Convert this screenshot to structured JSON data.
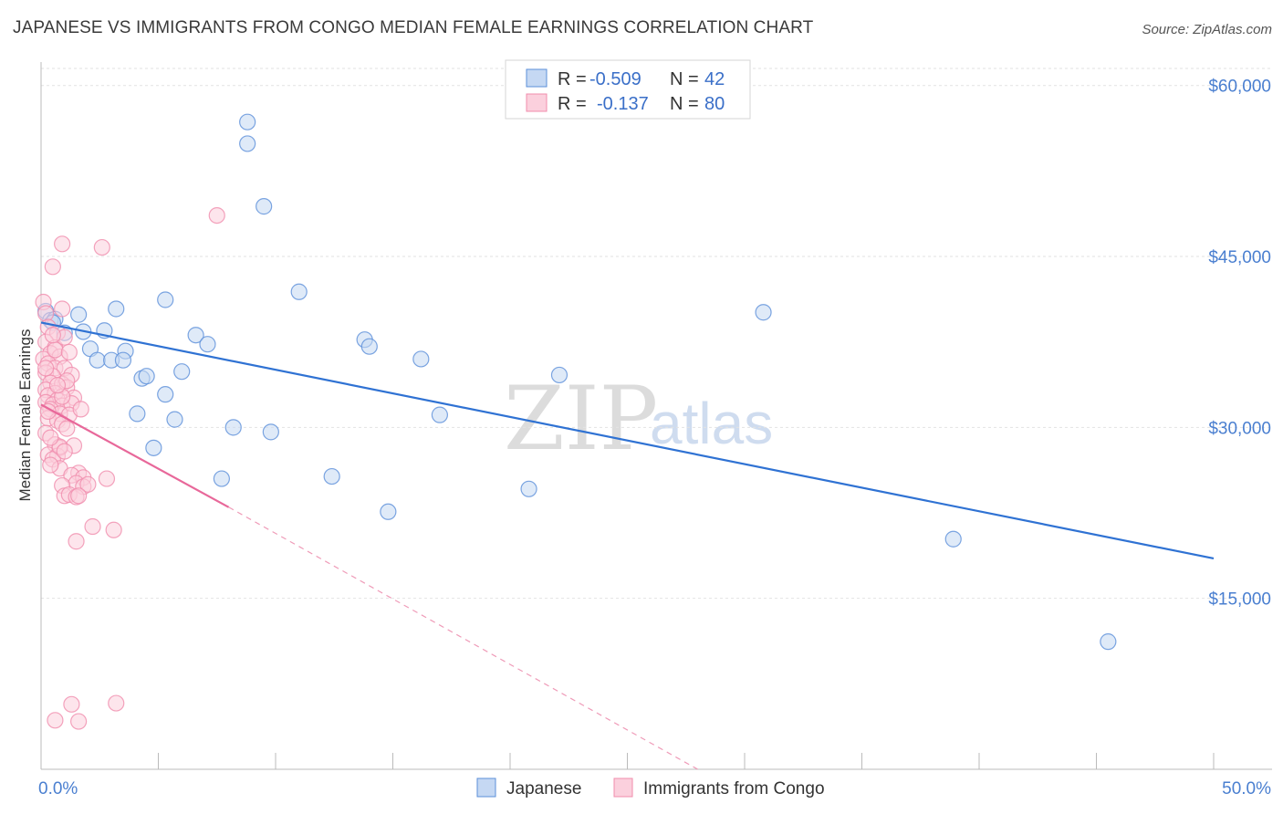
{
  "title": "JAPANESE VS IMMIGRANTS FROM CONGO MEDIAN FEMALE EARNINGS CORRELATION CHART",
  "source": "Source: ZipAtlas.com",
  "watermark": {
    "part1": "ZIP",
    "part2": "atlas"
  },
  "legend": {
    "r_label": "R =",
    "n_label": "N =",
    "rows": [
      {
        "r": "-0.509",
        "n": "42"
      },
      {
        "r": "-0.137",
        "n": "80"
      }
    ]
  },
  "chart_data": {
    "type": "scatter",
    "title": "JAPANESE VS IMMIGRANTS FROM CONGO MEDIAN FEMALE EARNINGS CORRELATION CHART",
    "xlabel": "",
    "ylabel": "Median Female Earnings",
    "xlim": [
      0,
      50
    ],
    "ylim": [
      0,
      61500
    ],
    "x_tick_labels": [
      "0.0%",
      "50.0%"
    ],
    "y_ticks": [
      15000,
      30000,
      45000,
      60000
    ],
    "y_tick_labels": [
      "$15,000",
      "$30,000",
      "$45,000",
      "$60,000"
    ],
    "grid": true,
    "legend_position": "top-center",
    "series": [
      {
        "name": "Japanese",
        "color": "#5b8fd9",
        "fill": "#c5d8f3",
        "trend": {
          "x0": 0,
          "y0": 39200,
          "x1": 50,
          "y1": 18500,
          "dashed_from": null
        },
        "points": [
          [
            0.2,
            40200
          ],
          [
            0.4,
            39400
          ],
          [
            0.6,
            39500
          ],
          [
            1.6,
            39900
          ],
          [
            1.0,
            38300
          ],
          [
            1.8,
            38400
          ],
          [
            2.7,
            38500
          ],
          [
            2.1,
            36900
          ],
          [
            3.6,
            36700
          ],
          [
            2.4,
            35900
          ],
          [
            3.0,
            35900
          ],
          [
            3.5,
            35900
          ],
          [
            4.3,
            34300
          ],
          [
            4.5,
            34500
          ],
          [
            3.2,
            40400
          ],
          [
            5.3,
            41200
          ],
          [
            6.6,
            38100
          ],
          [
            7.1,
            37300
          ],
          [
            6.0,
            34900
          ],
          [
            5.3,
            32900
          ],
          [
            4.1,
            31200
          ],
          [
            5.7,
            30700
          ],
          [
            4.8,
            28200
          ],
          [
            8.2,
            30000
          ],
          [
            9.8,
            29600
          ],
          [
            7.7,
            25500
          ],
          [
            8.8,
            56800
          ],
          [
            8.8,
            54900
          ],
          [
            9.5,
            49400
          ],
          [
            11.0,
            41900
          ],
          [
            13.8,
            37700
          ],
          [
            14.0,
            37100
          ],
          [
            16.2,
            36000
          ],
          [
            17.0,
            31100
          ],
          [
            12.4,
            25700
          ],
          [
            14.8,
            22600
          ],
          [
            20.8,
            24600
          ],
          [
            22.1,
            34600
          ],
          [
            30.8,
            40100
          ],
          [
            38.9,
            20200
          ],
          [
            45.5,
            11200
          ],
          [
            0.5,
            39200
          ]
        ]
      },
      {
        "name": "Immigrants from Congo",
        "color": "#f08cac",
        "fill": "#fbd0dd",
        "trend": {
          "x0": 0,
          "y0": 32000,
          "x1": 8,
          "y1": 23000,
          "dashed_to_x": 28,
          "dashed_to_y": 0
        },
        "points": [
          [
            0.1,
            41000
          ],
          [
            0.5,
            44100
          ],
          [
            0.2,
            40000
          ],
          [
            0.9,
            40400
          ],
          [
            0.3,
            38800
          ],
          [
            0.7,
            38300
          ],
          [
            0.2,
            37500
          ],
          [
            0.6,
            37000
          ],
          [
            1.0,
            37900
          ],
          [
            0.4,
            36500
          ],
          [
            0.8,
            36200
          ],
          [
            0.1,
            36000
          ],
          [
            0.3,
            35600
          ],
          [
            0.6,
            35200
          ],
          [
            1.0,
            35200
          ],
          [
            0.2,
            34800
          ],
          [
            0.5,
            34500
          ],
          [
            1.3,
            34600
          ],
          [
            0.4,
            33900
          ],
          [
            0.9,
            33800
          ],
          [
            1.1,
            33500
          ],
          [
            0.2,
            33300
          ],
          [
            0.6,
            33000
          ],
          [
            0.3,
            32800
          ],
          [
            1.4,
            32600
          ],
          [
            0.7,
            32400
          ],
          [
            0.2,
            32200
          ],
          [
            0.5,
            32000
          ],
          [
            0.9,
            31900
          ],
          [
            1.3,
            32100
          ],
          [
            0.4,
            31600
          ],
          [
            0.8,
            31200
          ],
          [
            1.2,
            31100
          ],
          [
            0.3,
            30800
          ],
          [
            0.7,
            30600
          ],
          [
            0.9,
            30300
          ],
          [
            0.2,
            29500
          ],
          [
            1.1,
            29900
          ],
          [
            0.6,
            28500
          ],
          [
            0.8,
            28200
          ],
          [
            1.4,
            28400
          ],
          [
            0.3,
            27600
          ],
          [
            0.7,
            27500
          ],
          [
            0.5,
            27200
          ],
          [
            0.8,
            26400
          ],
          [
            1.6,
            26000
          ],
          [
            1.3,
            25800
          ],
          [
            1.8,
            25600
          ],
          [
            2.8,
            25500
          ],
          [
            1.5,
            25100
          ],
          [
            0.9,
            24900
          ],
          [
            1.8,
            24800
          ],
          [
            2.0,
            25000
          ],
          [
            1.0,
            24000
          ],
          [
            1.2,
            24100
          ],
          [
            1.5,
            23900
          ],
          [
            1.6,
            24000
          ],
          [
            2.2,
            21300
          ],
          [
            3.1,
            21000
          ],
          [
            1.5,
            20000
          ],
          [
            0.9,
            46100
          ],
          [
            2.6,
            45800
          ],
          [
            7.5,
            48600
          ],
          [
            1.3,
            5700
          ],
          [
            3.2,
            5800
          ],
          [
            0.6,
            4300
          ],
          [
            1.6,
            4200
          ],
          [
            0.8,
            28300
          ],
          [
            0.3,
            31400
          ],
          [
            0.6,
            36800
          ],
          [
            1.1,
            34100
          ],
          [
            0.4,
            29100
          ],
          [
            0.9,
            32700
          ],
          [
            1.7,
            31600
          ],
          [
            0.2,
            35200
          ],
          [
            0.5,
            38100
          ],
          [
            1.2,
            36600
          ],
          [
            0.7,
            33700
          ],
          [
            0.4,
            26700
          ],
          [
            1.0,
            27900
          ]
        ]
      }
    ]
  }
}
